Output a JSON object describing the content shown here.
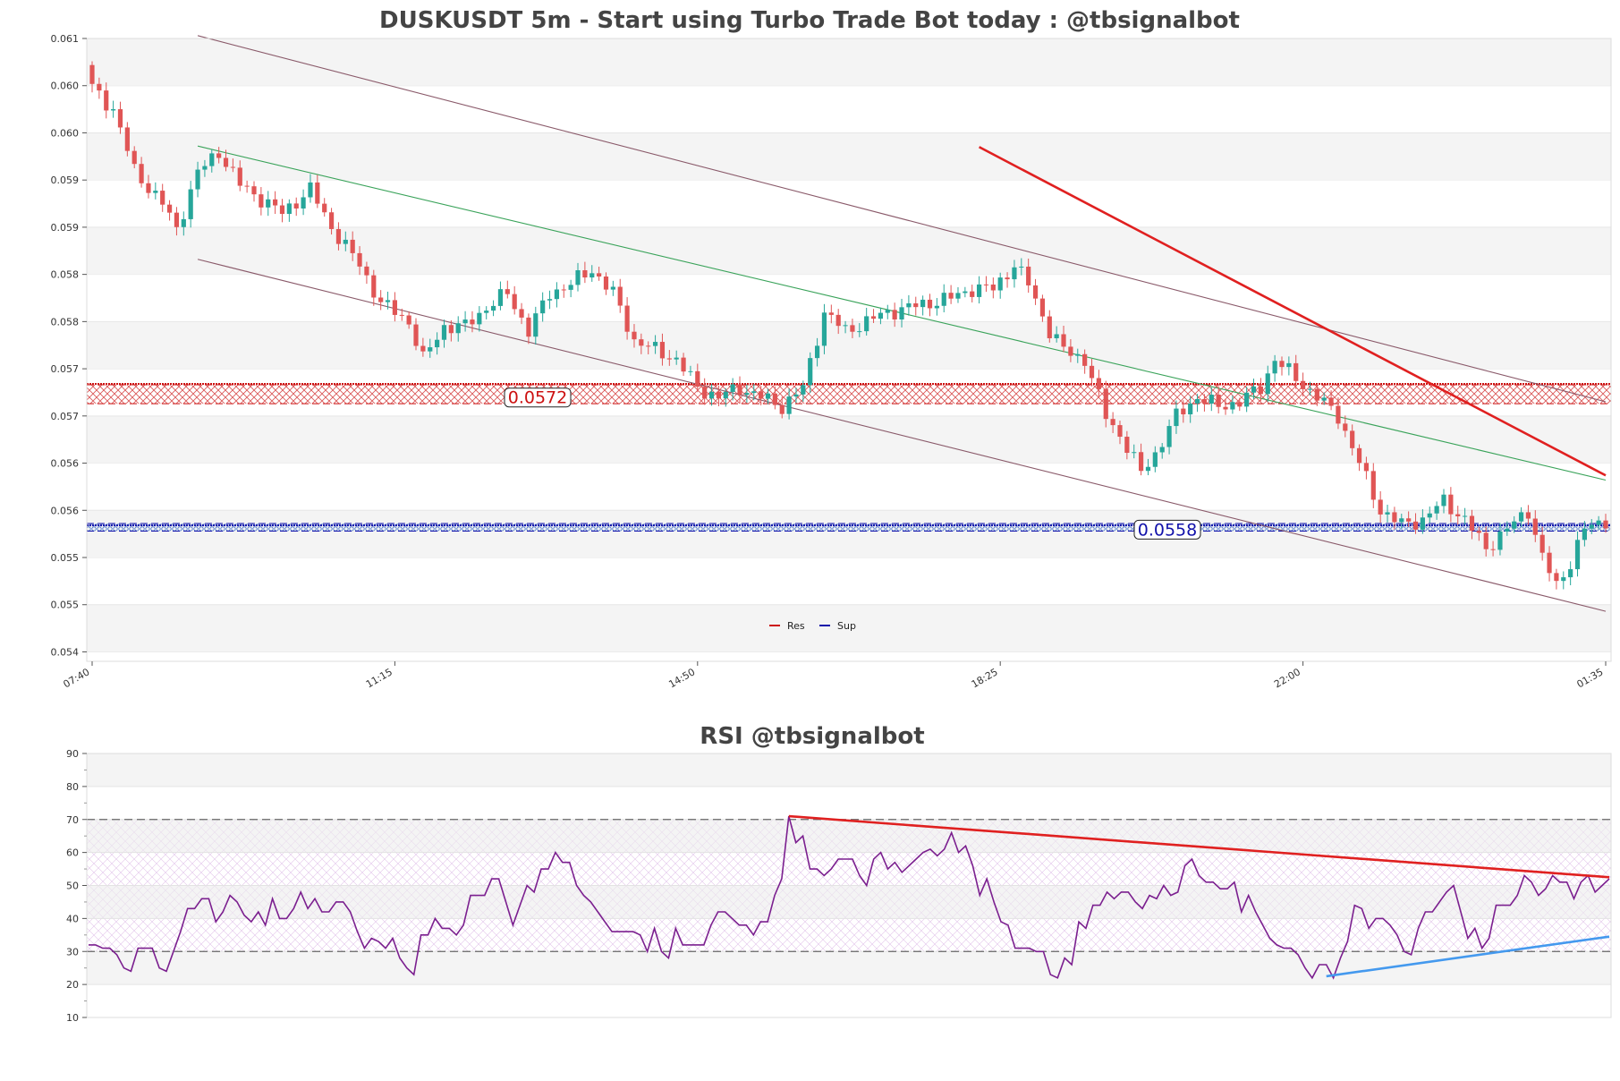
{
  "chart_data": [
    {
      "type": "candlestick",
      "title": "DUSKUSDT 5m - Start using Turbo Trade Bot today : @tbsignalbot",
      "xlabel": "",
      "ylabel": "",
      "ylim": [
        0.0544,
        0.061
      ],
      "y_ticks": [
        {
          "value": 0.061,
          "label": "0.061"
        },
        {
          "value": 0.0605,
          "label": "0.060"
        },
        {
          "value": 0.06,
          "label": "0.060"
        },
        {
          "value": 0.0595,
          "label": "0.059"
        },
        {
          "value": 0.059,
          "label": "0.059"
        },
        {
          "value": 0.0585,
          "label": "0.058"
        },
        {
          "value": 0.058,
          "label": "0.058"
        },
        {
          "value": 0.0575,
          "label": "0.057"
        },
        {
          "value": 0.057,
          "label": "0.057"
        },
        {
          "value": 0.0565,
          "label": "0.056"
        },
        {
          "value": 0.056,
          "label": "0.056"
        },
        {
          "value": 0.0555,
          "label": "0.055"
        },
        {
          "value": 0.055,
          "label": "0.055"
        },
        {
          "value": 0.0545,
          "label": "0.054"
        }
      ],
      "x_ticks": [
        {
          "index": 0,
          "label": "07:40"
        },
        {
          "index": 43,
          "label": "11:15"
        },
        {
          "index": 86,
          "label": "14:50"
        },
        {
          "index": 129,
          "label": "18:25"
        },
        {
          "index": 172,
          "label": "22:00"
        },
        {
          "index": 215,
          "label": "01:35"
        }
      ],
      "n_candles": 216,
      "close_path": [
        [
          0,
          0.06048
        ],
        [
          3,
          0.06025
        ],
        [
          6,
          0.0596
        ],
        [
          10,
          0.05925
        ],
        [
          12,
          0.05898
        ],
        [
          15,
          0.05958
        ],
        [
          18,
          0.0598
        ],
        [
          21,
          0.05945
        ],
        [
          24,
          0.0593
        ],
        [
          27,
          0.05915
        ],
        [
          31,
          0.0594
        ],
        [
          34,
          0.059
        ],
        [
          38,
          0.0586
        ],
        [
          41,
          0.0582
        ],
        [
          45,
          0.058
        ],
        [
          47,
          0.0576
        ],
        [
          50,
          0.05795
        ],
        [
          53,
          0.05795
        ],
        [
          56,
          0.05815
        ],
        [
          59,
          0.0583
        ],
        [
          62,
          0.0579
        ],
        [
          65,
          0.0583
        ],
        [
          68,
          0.0584
        ],
        [
          71,
          0.05855
        ],
        [
          74,
          0.0583
        ],
        [
          77,
          0.0578
        ],
        [
          80,
          0.0577
        ],
        [
          83,
          0.0576
        ],
        [
          86,
          0.0573
        ],
        [
          89,
          0.0572
        ],
        [
          92,
          0.0573
        ],
        [
          95,
          0.0572
        ],
        [
          98,
          0.0571
        ],
        [
          101,
          0.0573
        ],
        [
          104,
          0.0581
        ],
        [
          107,
          0.0579
        ],
        [
          110,
          0.058
        ],
        [
          113,
          0.0581
        ],
        [
          116,
          0.05815
        ],
        [
          119,
          0.0582
        ],
        [
          122,
          0.05825
        ],
        [
          125,
          0.05835
        ],
        [
          128,
          0.05835
        ],
        [
          131,
          0.0586
        ],
        [
          133,
          0.0584
        ],
        [
          136,
          0.0579
        ],
        [
          138,
          0.0577
        ],
        [
          141,
          0.0576
        ],
        [
          144,
          0.057
        ],
        [
          146,
          0.0568
        ],
        [
          149,
          0.0564
        ],
        [
          151,
          0.0566
        ],
        [
          154,
          0.057
        ],
        [
          157,
          0.0572
        ],
        [
          160,
          0.0571
        ],
        [
          163,
          0.05715
        ],
        [
          166,
          0.0573
        ],
        [
          168,
          0.0576
        ],
        [
          171,
          0.0574
        ],
        [
          174,
          0.0572
        ],
        [
          177,
          0.057
        ],
        [
          180,
          0.0565
        ],
        [
          183,
          0.056
        ],
        [
          186,
          0.05585
        ],
        [
          189,
          0.0559
        ],
        [
          192,
          0.0561
        ],
        [
          195,
          0.0559
        ],
        [
          198,
          0.0556
        ],
        [
          201,
          0.0558
        ],
        [
          204,
          0.056
        ],
        [
          206,
          0.0555
        ],
        [
          208,
          0.0552
        ],
        [
          210,
          0.05545
        ],
        [
          212,
          0.0558
        ],
        [
          215,
          0.0559
        ]
      ],
      "levels": [
        {
          "name": "Res",
          "value": 0.0572,
          "label": "0.0572",
          "color": "#cc1111",
          "band": [
            0.05713,
            0.05733
          ],
          "line": 0.05734
        },
        {
          "name": "Sup",
          "value": 0.0558,
          "label": "0.0558",
          "color": "#1111aa",
          "band": [
            0.05578,
            0.05586
          ],
          "line": 0.05584
        }
      ],
      "channel": {
        "upper": [
          [
            15,
            0.06103
          ],
          [
            215,
            0.05715
          ]
        ],
        "middle": [
          [
            15,
            0.05986
          ],
          [
            215,
            0.05632
          ]
        ],
        "lower": [
          [
            15,
            0.05866
          ],
          [
            215,
            0.05493
          ]
        ]
      },
      "trendline": [
        [
          126,
          0.05985
        ],
        [
          215,
          0.05637
        ]
      ],
      "legend": [
        {
          "name": "Res",
          "color": "#cc1111"
        },
        {
          "name": "Sup",
          "color": "#1111aa"
        }
      ],
      "grid": true
    },
    {
      "type": "line",
      "title": "RSI @tbsignalbot",
      "ylim": [
        10,
        90
      ],
      "y_ticks": [
        90,
        80,
        70,
        60,
        50,
        40,
        30,
        20,
        10
      ],
      "levels": [
        70,
        30
      ],
      "values": [
        32,
        32,
        31,
        31,
        29,
        25,
        24,
        31,
        31,
        31,
        25,
        24,
        30,
        36,
        43,
        43,
        46,
        46,
        39,
        42,
        47,
        45,
        41,
        39,
        42,
        38,
        46,
        40,
        40,
        43,
        48,
        43,
        46,
        42,
        42,
        45,
        45,
        42,
        36,
        31,
        34,
        33,
        31,
        34,
        28,
        25,
        23,
        35,
        35,
        40,
        37,
        37,
        35,
        38,
        47,
        47,
        47,
        52,
        52,
        45,
        38,
        44,
        50,
        48,
        55,
        55,
        60,
        57,
        57,
        50,
        47,
        45,
        42,
        39,
        36,
        36,
        36,
        36,
        35,
        30,
        37,
        30,
        28,
        37,
        32,
        32,
        32,
        32,
        38,
        42,
        42,
        40,
        38,
        38,
        35,
        39,
        39,
        47,
        52,
        71,
        63,
        65,
        55,
        55,
        53,
        55,
        58,
        58,
        58,
        53,
        50,
        58,
        60,
        55,
        57,
        54,
        56,
        58,
        60,
        61,
        59,
        61,
        66,
        60,
        62,
        56,
        47,
        52,
        45,
        39,
        38,
        31,
        31,
        31,
        30,
        30,
        23,
        22,
        28,
        26,
        39,
        37,
        44,
        44,
        48,
        46,
        48,
        48,
        45,
        43,
        47,
        46,
        50,
        47,
        48,
        56,
        58,
        53,
        51,
        51,
        49,
        49,
        51,
        42,
        47,
        42,
        38,
        34,
        32,
        31,
        31,
        29,
        25,
        22,
        26,
        26,
        22,
        28,
        33,
        44,
        43,
        37,
        40,
        40,
        38,
        35,
        30,
        29,
        37,
        42,
        42,
        45,
        48,
        50,
        42,
        34,
        37,
        31,
        34,
        44,
        44,
        44,
        47,
        53,
        51,
        47,
        49,
        53,
        51,
        51,
        46,
        51,
        53,
        48,
        50,
        52
      ],
      "trendlines": [
        {
          "name": "resistance",
          "color": "#e02020",
          "points": [
            [
              99,
              71
            ],
            [
              215,
              52.5
            ]
          ]
        },
        {
          "name": "support",
          "color": "#4499ee",
          "points": [
            [
              175,
              22.5
            ],
            [
              215,
              34.5
            ]
          ]
        }
      ],
      "line_color": "#7b1f8f",
      "grid": true
    }
  ]
}
